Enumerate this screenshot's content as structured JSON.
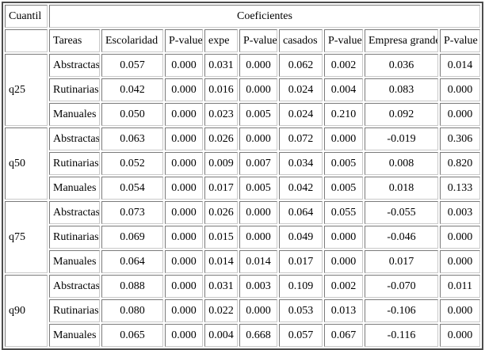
{
  "table": {
    "corner_header": "Cuantil",
    "main_header": "Coeficientes",
    "columns": [
      "Tareas",
      "Escolaridad",
      "P-value",
      "expe",
      "P-value",
      "casados",
      "P-value",
      "Empresa grande",
      "P-value"
    ],
    "groups": [
      {
        "quantile": "q25",
        "rows": [
          {
            "task": "Abstractas",
            "values": [
              "0.057",
              "0.000",
              "0.031",
              "0.000",
              "0.062",
              "0.002",
              "0.036",
              "0.014"
            ]
          },
          {
            "task": "Rutinarias",
            "values": [
              "0.042",
              "0.000",
              "0.016",
              "0.000",
              "0.024",
              "0.004",
              "0.083",
              "0.000"
            ]
          },
          {
            "task": "Manuales",
            "values": [
              "0.050",
              "0.000",
              "0.023",
              "0.005",
              "0.024",
              "0.210",
              "0.092",
              "0.000"
            ]
          }
        ]
      },
      {
        "quantile": "q50",
        "rows": [
          {
            "task": "Abstractas",
            "values": [
              "0.063",
              "0.000",
              "0.026",
              "0.000",
              "0.072",
              "0.000",
              "-0.019",
              "0.306"
            ]
          },
          {
            "task": "Rutinarias",
            "values": [
              "0.052",
              "0.000",
              "0.009",
              "0.007",
              "0.034",
              "0.005",
              "0.008",
              "0.820"
            ]
          },
          {
            "task": "Manuales",
            "values": [
              "0.054",
              "0.000",
              "0.017",
              "0.005",
              "0.042",
              "0.005",
              "0.018",
              "0.133"
            ]
          }
        ]
      },
      {
        "quantile": "q75",
        "rows": [
          {
            "task": "Abstractas",
            "values": [
              "0.073",
              "0.000",
              "0.026",
              "0.000",
              "0.064",
              "0.055",
              "-0.055",
              "0.003"
            ]
          },
          {
            "task": "Rutinarias",
            "values": [
              "0.069",
              "0.000",
              "0.015",
              "0.000",
              "0.049",
              "0.000",
              "-0.046",
              "0.000"
            ]
          },
          {
            "task": "Manuales",
            "values": [
              "0.064",
              "0.000",
              "0.014",
              "0.014",
              "0.017",
              "0.000",
              "0.017",
              "0.000"
            ]
          }
        ]
      },
      {
        "quantile": "q90",
        "rows": [
          {
            "task": "Abstractas",
            "values": [
              "0.088",
              "0.000",
              "0.031",
              "0.003",
              "0.109",
              "0.002",
              "-0.070",
              "0.011"
            ]
          },
          {
            "task": "Rutinarias",
            "values": [
              "0.080",
              "0.000",
              "0.022",
              "0.000",
              "0.053",
              "0.013",
              "-0.106",
              "0.000"
            ]
          },
          {
            "task": "Manuales",
            "values": [
              "0.065",
              "0.000",
              "0.004",
              "0.668",
              "0.057",
              "0.067",
              "-0.116",
              "0.000"
            ]
          }
        ]
      }
    ]
  },
  "colors": {
    "outer_border": "#4d4d4d",
    "cell_border_dark": "#7a7a7a",
    "cell_border_light": "#c9c9c9",
    "background": "#ffffff",
    "text": "#000000"
  }
}
